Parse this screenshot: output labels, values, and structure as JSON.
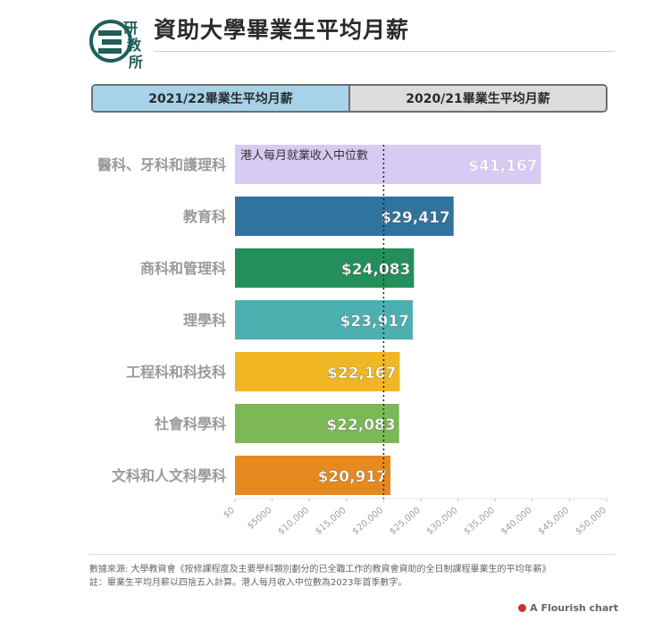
{
  "header": {
    "logo_text": [
      "研",
      "教",
      "所"
    ],
    "title": "資助大學畢業生平均月薪"
  },
  "tabs": [
    {
      "label": "2021/22畢業生平均月薪",
      "active": true
    },
    {
      "label": "2020/21畢業生平均月薪",
      "active": false
    }
  ],
  "chart_data": {
    "type": "bar",
    "orientation": "horizontal",
    "categories": [
      "醫科、牙科和護理科",
      "教育科",
      "商科和管理科",
      "理學科",
      "工程科和科技科",
      "社會科學科",
      "文科和人文科學科"
    ],
    "values": [
      41167,
      29417,
      24083,
      23917,
      22167,
      22083,
      20917
    ],
    "value_labels": [
      "$41,167",
      "$29,417",
      "$24,083",
      "$23,917",
      "$22,167",
      "$22,083",
      "$20,917"
    ],
    "colors": [
      "#d7cbf4",
      "#30739f",
      "#248f5b",
      "#4cb0b0",
      "#f0b623",
      "#7cb956",
      "#e6891f"
    ],
    "xlim": [
      0,
      50000
    ],
    "x_ticks": [
      0,
      5000,
      10000,
      15000,
      20000,
      25000,
      30000,
      35000,
      40000,
      45000,
      50000
    ],
    "x_tick_labels": [
      "$0",
      "$5000",
      "$10,000",
      "$15,000",
      "$20,000",
      "$25,000",
      "$30,000",
      "$35,000",
      "$40,000",
      "$45,000",
      "$50,000"
    ],
    "reference_line": {
      "value": 20000,
      "label": "港人每月就業收入中位數",
      "style": "dotted"
    }
  },
  "footer": {
    "source": "數據來源: 大學教資會《按修課程度及主要學科類別劃分的已全職工作的教資會資助的全日制課程畢業生的平均年薪》",
    "note": "註：畢業生平均月薪以四捨五入計算。港人每月收入中位數為2023年首季數字。",
    "credit": "A Flourish chart"
  }
}
